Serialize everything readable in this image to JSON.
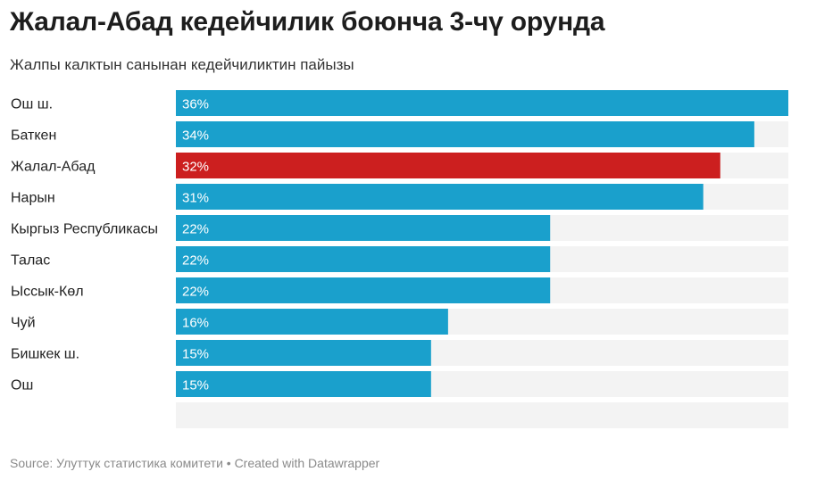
{
  "title": "Жалал-Абад кедейчилик боюнча 3-чү орунда",
  "subtitle": "Жалпы калктын санынан кедейчиликтин пайызы",
  "source": "Source: Улуттук статистика комитети • Created with Datawrapper",
  "colors": {
    "default_bar": "#1aa0cc",
    "highlight_bar": "#cc1f1f",
    "track": "#f3f3f3"
  },
  "chart_data": {
    "type": "bar",
    "orientation": "horizontal",
    "categories": [
      "Ош ш.",
      "Баткен",
      "Жалал-Абад",
      "Нарын",
      "Кыргыз Республикасы",
      "Талас",
      "Ыссык-Көл",
      "Чуй",
      "Бишкек ш.",
      "Ош"
    ],
    "values": [
      36,
      34,
      32,
      31,
      22,
      22,
      22,
      16,
      15,
      15
    ],
    "labels": [
      "36%",
      "34%",
      "32%",
      "31%",
      "22%",
      "22%",
      "22%",
      "16%",
      "15%",
      "15%"
    ],
    "highlight": "Жалал-Абад",
    "xlim": [
      0,
      36
    ]
  }
}
